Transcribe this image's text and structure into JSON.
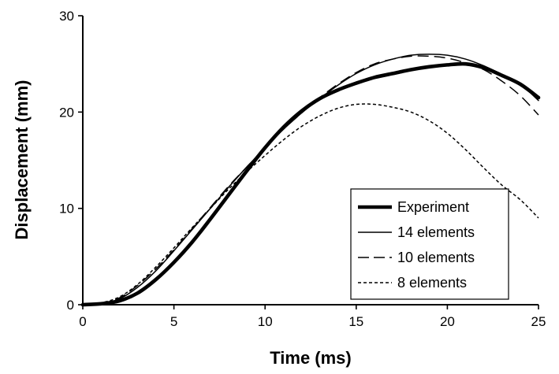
{
  "chart_data": {
    "type": "line",
    "title": "",
    "xlabel": "Time (ms)",
    "ylabel": "Displacement (mm)",
    "xlim": [
      0,
      25
    ],
    "ylim": [
      0,
      30
    ],
    "xticks": [
      0,
      5,
      10,
      15,
      20,
      25
    ],
    "yticks": [
      0,
      10,
      20,
      30
    ],
    "xtick_labels": [
      "0",
      "5",
      "10",
      "15",
      "20",
      "25"
    ],
    "ytick_labels": [
      "0",
      "10",
      "20",
      "30"
    ],
    "grid": false,
    "legend_position": "bottom-right",
    "series": [
      {
        "name": "Experiment",
        "style": "thick-solid",
        "color": "#000000",
        "x": [
          0,
          1,
          2,
          3,
          4,
          5,
          6,
          7,
          8,
          9,
          10,
          11,
          12,
          13,
          14,
          15,
          16,
          17,
          18,
          19,
          20,
          21,
          22,
          23,
          24,
          25
        ],
        "y": [
          0,
          0.1,
          0.4,
          1.2,
          2.6,
          4.4,
          6.5,
          8.9,
          11.4,
          13.9,
          16.3,
          18.4,
          20.1,
          21.4,
          22.3,
          23.0,
          23.6,
          24.0,
          24.4,
          24.7,
          24.9,
          25.0,
          24.6,
          23.8,
          22.9,
          21.5
        ]
      },
      {
        "name": "14 elements",
        "style": "solid",
        "color": "#000000",
        "x": [
          0,
          1,
          2,
          3,
          4,
          5,
          6,
          7,
          8,
          9,
          10,
          11,
          12,
          13,
          14,
          15,
          16,
          17,
          18,
          19,
          20,
          21,
          22,
          23,
          24,
          25
        ],
        "y": [
          0,
          0.1,
          0.6,
          1.8,
          3.5,
          5.6,
          7.8,
          10.0,
          12.2,
          14.3,
          16.3,
          18.2,
          19.9,
          21.4,
          22.8,
          24.0,
          24.9,
          25.5,
          25.9,
          26.0,
          25.9,
          25.5,
          24.8,
          23.9,
          22.9,
          21.2
        ]
      },
      {
        "name": "10 elements",
        "style": "dashed",
        "color": "#000000",
        "x": [
          0,
          1,
          2,
          3,
          4,
          5,
          6,
          7,
          8,
          9,
          10,
          11,
          12,
          13,
          14,
          15,
          16,
          17,
          18,
          19,
          20,
          21,
          22,
          23,
          24,
          25
        ],
        "y": [
          0,
          0.1,
          0.7,
          2.0,
          3.7,
          5.7,
          7.9,
          10.1,
          12.3,
          14.3,
          16.3,
          18.2,
          19.9,
          21.5,
          22.9,
          24.1,
          25.0,
          25.5,
          25.8,
          25.8,
          25.6,
          25.1,
          24.4,
          23.2,
          21.7,
          19.7
        ]
      },
      {
        "name": "8 elements",
        "style": "dotted",
        "color": "#000000",
        "x": [
          0,
          1,
          2,
          3,
          4,
          5,
          6,
          7,
          8,
          9,
          10,
          11,
          12,
          13,
          14,
          15,
          16,
          17,
          18,
          19,
          20,
          21,
          22,
          23,
          24,
          25
        ],
        "y": [
          0,
          0.2,
          0.8,
          2.1,
          3.9,
          5.9,
          8.0,
          10.0,
          12.0,
          13.8,
          15.5,
          17.1,
          18.5,
          19.6,
          20.4,
          20.8,
          20.8,
          20.5,
          20.0,
          19.1,
          17.8,
          16.1,
          14.2,
          12.4,
          10.9,
          9.0
        ]
      }
    ]
  }
}
